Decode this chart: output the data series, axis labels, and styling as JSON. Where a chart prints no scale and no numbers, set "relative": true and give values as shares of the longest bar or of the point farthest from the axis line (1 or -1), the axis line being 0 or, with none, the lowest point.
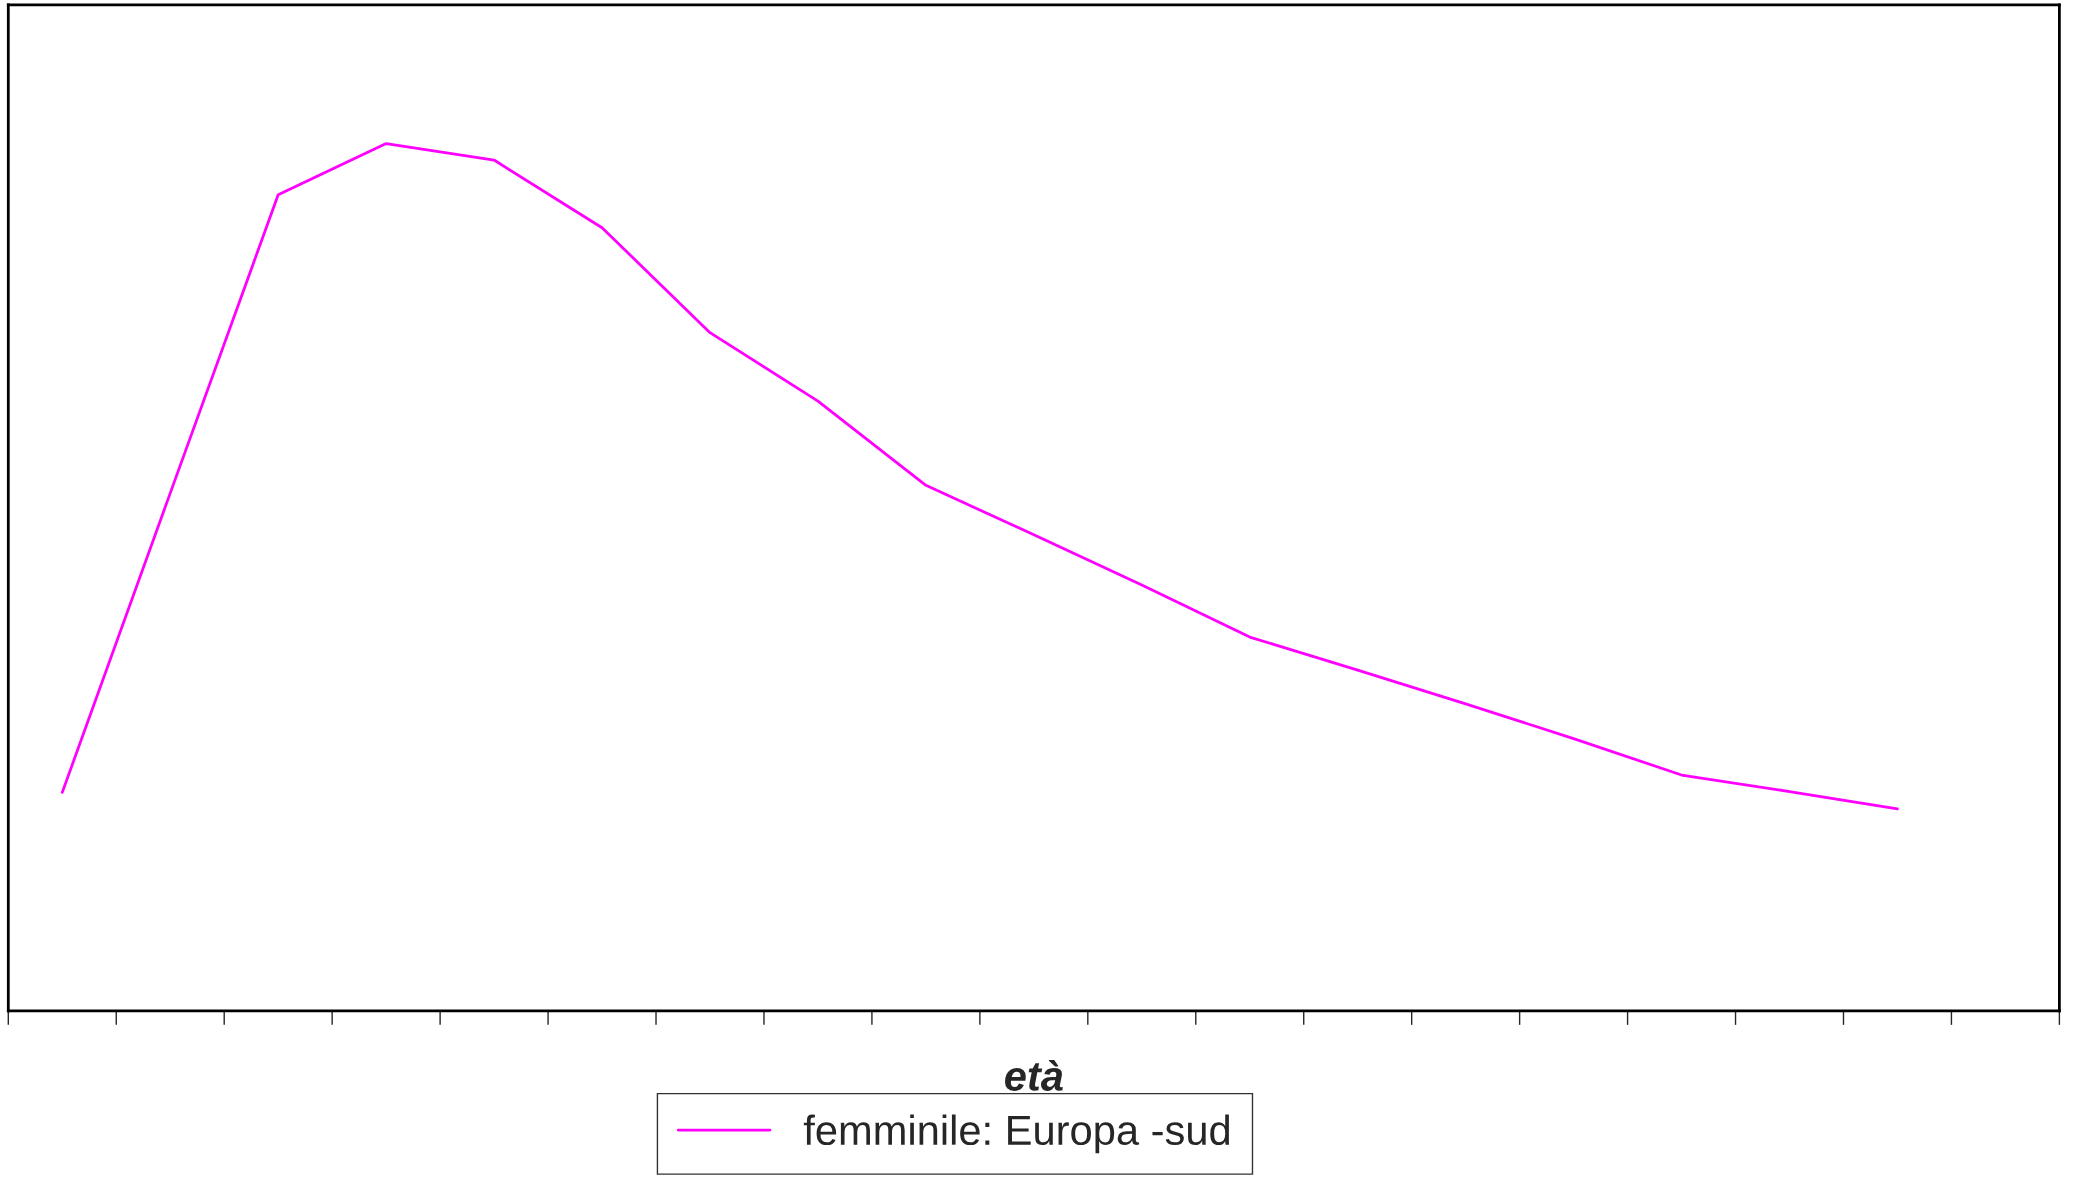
{
  "chart_data": {
    "type": "line",
    "xlabel": "età",
    "relative": true,
    "legend": "bottom",
    "grid": false,
    "marker": "none",
    "line_style": "solid",
    "categories": [
      null,
      null,
      null,
      null,
      null,
      null,
      null,
      null,
      null,
      null,
      null,
      null,
      null,
      null,
      null,
      null,
      null,
      null,
      null
    ],
    "series": [
      {
        "name": "femminile: Europa -sud",
        "color": "#ff00ff",
        "values": [
          0.252,
          0.597,
          0.941,
          1,
          0.981,
          0.903,
          0.782,
          0.703,
          0.606,
          0.549,
          0.491,
          0.431,
          0.393,
          0.354,
          0.314,
          0.272,
          0.253,
          0.233,
          null
        ]
      }
    ]
  }
}
